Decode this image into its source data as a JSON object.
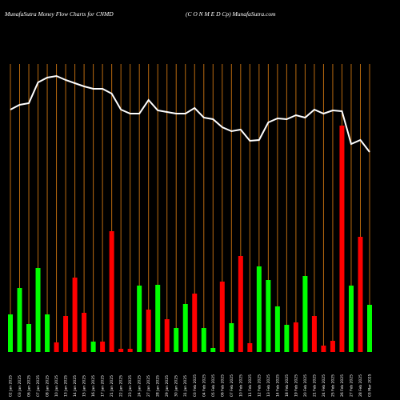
{
  "chart_data": {
    "type": "money-flow",
    "title": "MunafaSutra  Money Flow  Charts for CNMD",
    "subtitle": "(C O N  M E D Cp) MunafaSutra.com",
    "categories": [
      "02 Jan 2025",
      "03 Jan 2025",
      "06 Jan 2025",
      "07 Jan 2025",
      "08 Jan 2025",
      "10 Jan 2025",
      "13 Jan 2025",
      "14 Jan 2025",
      "15 Jan 2025",
      "16 Jan 2025",
      "17 Jan 2025",
      "21 Jan 2025",
      "22 Jan 2025",
      "23 Jan 2025",
      "24 Jan 2025",
      "27 Jan 2025",
      "28 Jan 2025",
      "29 Jan 2025",
      "30 Jan 2025",
      "31 Jan 2025",
      "03 Feb 2025",
      "04 Feb 2025",
      "05 Feb 2025",
      "06 Feb 2025",
      "07 Feb 2025",
      "10 Feb 2025",
      "11 Feb 2025",
      "12 Feb 2025",
      "13 Feb 2025",
      "14 Feb 2025",
      "18 Feb 2025",
      "19 Feb 2025",
      "20 Feb 2025",
      "21 Feb 2025",
      "24 Feb 2025",
      "25 Feb 2025",
      "26 Feb 2025",
      "27 Feb 2025",
      "28 Feb 2025",
      "03 Mar 2025"
    ],
    "values": [
      47,
      80,
      35,
      105,
      47,
      12,
      45,
      93,
      49,
      13,
      13,
      151,
      4,
      4,
      83,
      53,
      84,
      41,
      30,
      60,
      73,
      30,
      5,
      88,
      36,
      120,
      11,
      107,
      90,
      57,
      34,
      37,
      95,
      45,
      8,
      14,
      283,
      83,
      144,
      59
    ],
    "colors": [
      "#00ff00",
      "#00ff00",
      "#00ff00",
      "#00ff00",
      "#00ff00",
      "#ff0000",
      "#ff0000",
      "#ff0000",
      "#ff0000",
      "#00ff00",
      "#ff0000",
      "#ff0000",
      "#ff0000",
      "#ff0000",
      "#00ff00",
      "#ff0000",
      "#00ff00",
      "#ff0000",
      "#00ff00",
      "#00ff00",
      "#ff0000",
      "#00ff00",
      "#00ff00",
      "#ff0000",
      "#00ff00",
      "#ff0000",
      "#ff0000",
      "#00ff00",
      "#00ff00",
      "#00ff00",
      "#00ff00",
      "#ff0000",
      "#00ff00",
      "#ff0000",
      "#ff0000",
      "#ff0000",
      "#ff0000",
      "#00ff00",
      "#ff0000",
      "#00ff00"
    ],
    "line_values": [
      303,
      309,
      311,
      337,
      343,
      345,
      340,
      336,
      332,
      329,
      329,
      323,
      303,
      298,
      298,
      315,
      302,
      300,
      298,
      298,
      305,
      293,
      291,
      281,
      276,
      278,
      264,
      265,
      287,
      292,
      291,
      296,
      293,
      303,
      298,
      302,
      301,
      260,
      265,
      250
    ],
    "line_color": "#ffffff",
    "grid_color": "#b8690f",
    "ylim": [
      0,
      360
    ]
  }
}
